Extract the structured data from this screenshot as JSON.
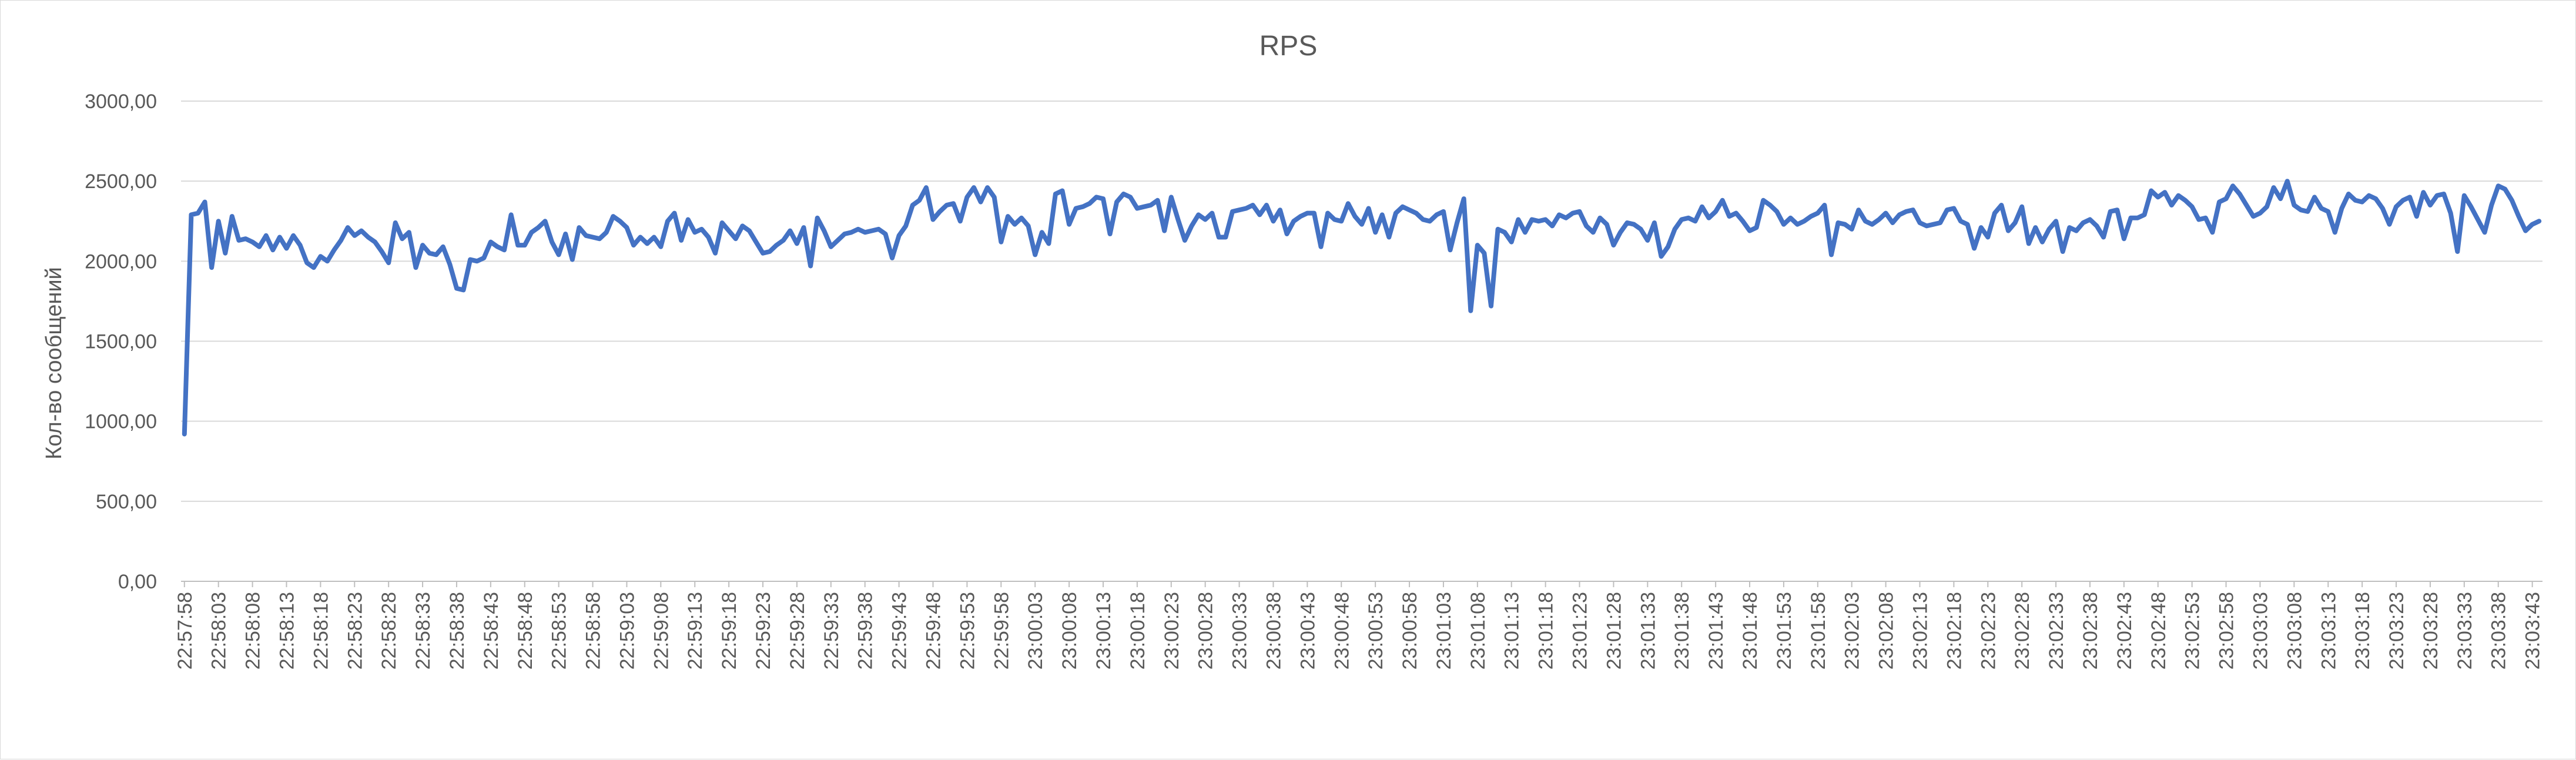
{
  "chart_data": {
    "type": "line",
    "title": "RPS",
    "xlabel": "",
    "ylabel": "Кол-во сообщений",
    "ylim": [
      0,
      3000
    ],
    "y_ticks": [
      "0,00",
      "500,00",
      "1000,00",
      "1500,00",
      "2000,00",
      "2500,00",
      "3000,00"
    ],
    "grid": true,
    "legend": "none",
    "x_tick_labels": [
      "22:57:58",
      "22:58:03",
      "22:58:08",
      "22:58:13",
      "22:58:18",
      "22:58:23",
      "22:58:28",
      "22:58:33",
      "22:58:38",
      "22:58:43",
      "22:58:48",
      "22:58:53",
      "22:58:58",
      "22:59:03",
      "22:59:08",
      "22:59:13",
      "22:59:18",
      "22:59:23",
      "22:59:28",
      "22:59:33",
      "22:59:38",
      "22:59:43",
      "22:59:48",
      "22:59:53",
      "22:59:58",
      "23:00:03",
      "23:00:08",
      "23:00:13",
      "23:00:18",
      "23:00:23",
      "23:00:28",
      "23:00:33",
      "23:00:38",
      "23:00:43",
      "23:00:48",
      "23:00:53",
      "23:00:58",
      "23:01:03",
      "23:01:08",
      "23:01:13",
      "23:01:18",
      "23:01:23",
      "23:01:28",
      "23:01:33",
      "23:01:38",
      "23:01:43",
      "23:01:48",
      "23:01:53",
      "23:01:58",
      "23:02:03",
      "23:02:08",
      "23:02:13",
      "23:02:18",
      "23:02:23",
      "23:02:28",
      "23:02:33",
      "23:02:38",
      "23:02:43",
      "23:02:48",
      "23:02:53",
      "23:02:58",
      "23:03:03",
      "23:03:08",
      "23:03:13",
      "23:03:18",
      "23:03:23",
      "23:03:28",
      "23:03:33",
      "23:03:38",
      "23:03:43"
    ],
    "series": [
      {
        "color": "#4472C4",
        "start_time": "22:57:58",
        "step_seconds": 1,
        "values": [
          920,
          2290,
          2300,
          2370,
          1960,
          2250,
          2050,
          2280,
          2130,
          2140,
          2120,
          2090,
          2160,
          2070,
          2150,
          2080,
          2160,
          2100,
          1990,
          1960,
          2030,
          2000,
          2070,
          2130,
          2210,
          2160,
          2190,
          2150,
          2120,
          2060,
          1990,
          2240,
          2140,
          2180,
          1960,
          2100,
          2050,
          2040,
          2090,
          1980,
          1830,
          1820,
          2010,
          2000,
          2020,
          2120,
          2090,
          2070,
          2290,
          2100,
          2100,
          2180,
          2210,
          2250,
          2120,
          2040,
          2170,
          2010,
          2210,
          2160,
          2150,
          2140,
          2180,
          2280,
          2250,
          2210,
          2100,
          2150,
          2110,
          2150,
          2090,
          2250,
          2300,
          2130,
          2260,
          2180,
          2200,
          2150,
          2050,
          2240,
          2190,
          2140,
          2220,
          2190,
          2120,
          2050,
          2060,
          2100,
          2130,
          2190,
          2110,
          2210,
          1970,
          2270,
          2190,
          2090,
          2130,
          2170,
          2180,
          2200,
          2180,
          2190,
          2200,
          2170,
          2020,
          2160,
          2220,
          2350,
          2380,
          2460,
          2260,
          2310,
          2350,
          2360,
          2250,
          2400,
          2460,
          2370,
          2460,
          2400,
          2120,
          2280,
          2230,
          2270,
          2220,
          2040,
          2180,
          2110,
          2420,
          2440,
          2230,
          2330,
          2340,
          2360,
          2400,
          2390,
          2170,
          2370,
          2420,
          2400,
          2330,
          2340,
          2350,
          2380,
          2190,
          2400,
          2260,
          2130,
          2220,
          2290,
          2260,
          2300,
          2150,
          2150,
          2310,
          2320,
          2330,
          2350,
          2290,
          2350,
          2250,
          2320,
          2170,
          2250,
          2280,
          2300,
          2300,
          2090,
          2300,
          2260,
          2250,
          2360,
          2280,
          2230,
          2330,
          2180,
          2290,
          2150,
          2300,
          2340,
          2320,
          2300,
          2260,
          2250,
          2290,
          2310,
          2070,
          2240,
          2390,
          1690,
          2100,
          2050,
          1720,
          2200,
          2180,
          2120,
          2260,
          2180,
          2260,
          2250,
          2260,
          2220,
          2290,
          2270,
          2300,
          2310,
          2220,
          2180,
          2270,
          2230,
          2100,
          2180,
          2240,
          2230,
          2200,
          2130,
          2240,
          2030,
          2090,
          2200,
          2260,
          2270,
          2250,
          2340,
          2270,
          2310,
          2380,
          2280,
          2300,
          2250,
          2190,
          2210,
          2380,
          2350,
          2310,
          2230,
          2270,
          2230,
          2250,
          2280,
          2300,
          2350,
          2040,
          2240,
          2230,
          2200,
          2320,
          2250,
          2230,
          2260,
          2300,
          2240,
          2290,
          2310,
          2320,
          2240,
          2220,
          2230,
          2240,
          2320,
          2330,
          2250,
          2230,
          2080,
          2210,
          2150,
          2300,
          2350,
          2190,
          2240,
          2340,
          2110,
          2210,
          2120,
          2200,
          2250,
          2060,
          2210,
          2190,
          2240,
          2260,
          2220,
          2150,
          2310,
          2320,
          2140,
          2270,
          2270,
          2290,
          2440,
          2400,
          2430,
          2350,
          2410,
          2380,
          2340,
          2260,
          2270,
          2180,
          2370,
          2390,
          2470,
          2420,
          2350,
          2280,
          2300,
          2340,
          2460,
          2390,
          2500,
          2350,
          2320,
          2310,
          2400,
          2330,
          2310,
          2180,
          2330,
          2420,
          2380,
          2370,
          2410,
          2390,
          2330,
          2230,
          2340,
          2380,
          2400,
          2280,
          2430,
          2350,
          2410,
          2420,
          2300,
          2060,
          2410,
          2340,
          2260,
          2180,
          2350,
          2470,
          2450,
          2380,
          2280,
          2190,
          2230,
          2250
        ]
      }
    ]
  }
}
